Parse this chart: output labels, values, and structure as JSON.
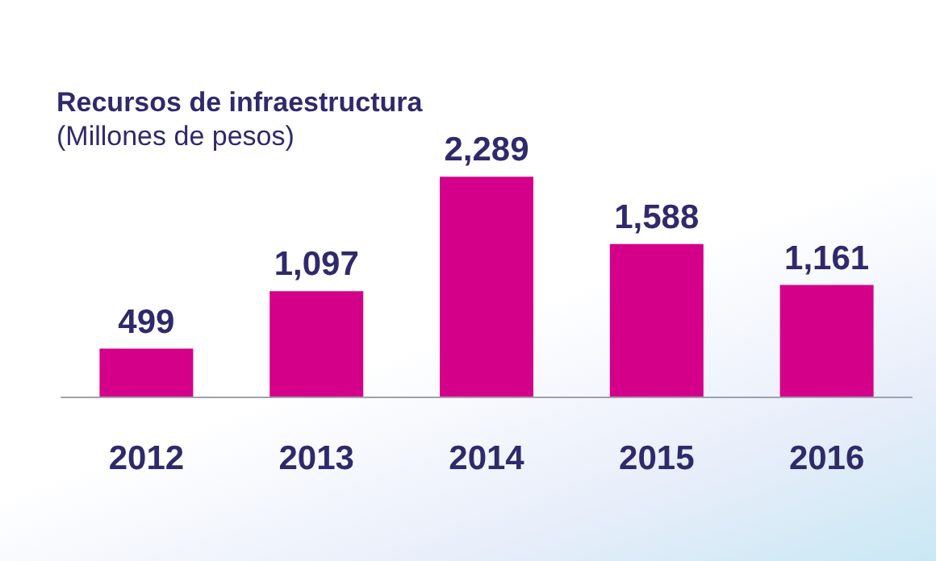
{
  "chart_data": {
    "type": "bar",
    "title": "Recursos de infraestructura",
    "subtitle": "(Millones de pesos)",
    "categories": [
      "2012",
      "2013",
      "2014",
      "2015",
      "2016"
    ],
    "values": [
      499,
      1097,
      2289,
      1588,
      1161
    ],
    "value_labels": [
      "499",
      "1,097",
      "2,289",
      "1,588",
      "1,161"
    ],
    "color": "#d4008a"
  }
}
